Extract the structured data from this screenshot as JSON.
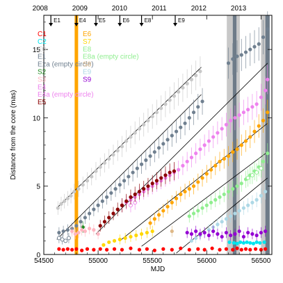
{
  "chart_data": {
    "type": "scatter",
    "xlabel": "MJD",
    "ylabel": "Distance from the core (mas)",
    "xlim": [
      54500,
      56600
    ],
    "ylim": [
      0,
      17.5
    ],
    "x_ticks": [
      54500,
      55000,
      55500,
      56000,
      56500
    ],
    "y_ticks": [
      0,
      5,
      10,
      15
    ],
    "top_axis": {
      "labels": [
        {
          "text": "2008",
          "mjd": 54466
        },
        {
          "text": "2009",
          "mjd": 54832
        },
        {
          "text": "2010",
          "mjd": 55197
        },
        {
          "text": "2011",
          "mjd": 55562
        },
        {
          "text": "2012",
          "mjd": 55927
        },
        {
          "text": "2013",
          "mjd": 56293
        }
      ]
    },
    "events": [
      {
        "label": "E1",
        "mjd": 54565
      },
      {
        "label": "E4",
        "mjd": 54800
      },
      {
        "label": "E5",
        "mjd": 54980
      },
      {
        "label": "E6",
        "mjd": 55200
      },
      {
        "label": "E8",
        "mjd": 55400
      },
      {
        "label": "E9",
        "mjd": 55710
      }
    ],
    "shaded_bands": [
      {
        "mjd_start": 56185,
        "mjd_end": 56240,
        "color": "#c8c8c8"
      },
      {
        "mjd_start": 56240,
        "mjd_end": 56275,
        "color": "#6e7b88"
      },
      {
        "mjd_start": 56275,
        "mjd_end": 56305,
        "color": "#c8c8c8"
      },
      {
        "mjd_start": 56500,
        "mjd_end": 56540,
        "color": "#c8c8c8"
      },
      {
        "mjd_start": 56540,
        "mjd_end": 56580,
        "color": "#6e7b88"
      }
    ],
    "vertical_line": {
      "mjd": 54800,
      "color": "#ffa500"
    },
    "legend_col1": [
      {
        "label": "C1",
        "color": "#ff0000"
      },
      {
        "label": "C2",
        "color": "#00e5ee"
      },
      {
        "label": "E0",
        "color": "#c8c8c8"
      },
      {
        "label": "E1",
        "color": "#708090"
      },
      {
        "label": "E1a (empty circle)",
        "color": "#708090"
      },
      {
        "label": "S2",
        "color": "#228b22"
      },
      {
        "label": "S3",
        "color": "#ffb6c1"
      },
      {
        "label": "E4",
        "color": "#ee82ee"
      },
      {
        "label": "E4a (empty circle)",
        "color": "#ee82ee"
      },
      {
        "label": "E5",
        "color": "#8b0000"
      }
    ],
    "legend_col2": [
      {
        "label": "E6",
        "color": "#ffa500"
      },
      {
        "label": "S7",
        "color": "#ffd700"
      },
      {
        "label": "E8",
        "color": "#90ee90"
      },
      {
        "label": "E8a (empty circle)",
        "color": "#90ee90"
      },
      {
        "label": "S8",
        "color": "#deb887"
      },
      {
        "label": "E9",
        "color": "#add8e6"
      },
      {
        "label": "S9",
        "color": "#9400d3"
      }
    ],
    "fit_lines": [
      {
        "x": [
          54620,
          55950
        ],
        "y": [
          3.4,
          13.7
        ]
      },
      {
        "x": [
          54620,
          55950
        ],
        "y": [
          1.1,
          11.7
        ]
      },
      {
        "x": [
          54980,
          56560
        ],
        "y": [
          1.5,
          14.0
        ]
      },
      {
        "x": [
          55200,
          56560
        ],
        "y": [
          1.0,
          9.6
        ]
      },
      {
        "x": [
          55400,
          56560
        ],
        "y": [
          0.6,
          7.5
        ]
      },
      {
        "x": [
          55720,
          56560
        ],
        "y": [
          0.1,
          5.6
        ]
      }
    ],
    "series": [
      {
        "name": "C1",
        "color": "#ff0000",
        "marker": "filled",
        "x": [
          54640,
          54680,
          54720,
          54760,
          54800,
          54850,
          54900,
          54960,
          55020,
          55080,
          55150,
          55220,
          55300,
          55380,
          55450,
          55520,
          55600,
          55680,
          55760,
          55840,
          55920,
          55980,
          56050,
          56120,
          56180,
          56240,
          56280,
          56320,
          56360,
          56400,
          56450,
          56500,
          56540
        ],
        "y": [
          0.4,
          0.35,
          0.4,
          0.35,
          0.4,
          0.3,
          0.4,
          0.35,
          0.4,
          0.35,
          0.4,
          0.35,
          0.45,
          0.35,
          0.4,
          0.3,
          0.4,
          0.35,
          0.45,
          0.35,
          0.4,
          0.35,
          0.45,
          0.35,
          0.4,
          0.35,
          0.45,
          0.35,
          0.4,
          0.35,
          0.4,
          0.35,
          0.4
        ]
      },
      {
        "name": "C2",
        "color": "#00e5ee",
        "marker": "filled",
        "x": [
          56210,
          56250,
          56280,
          56310,
          56340,
          56370,
          56400,
          56430,
          56460,
          56490,
          56530
        ],
        "y": [
          0.9,
          0.85,
          0.8,
          0.9,
          0.85,
          0.9,
          0.85,
          0.8,
          0.9,
          0.85,
          0.9
        ]
      },
      {
        "name": "E0",
        "color": "#c8c8c8",
        "marker": "filled",
        "x": [
          54630,
          54660,
          54690,
          54720,
          54750,
          54780,
          54820,
          54860,
          54900,
          54940,
          54980,
          55020,
          55060,
          55100,
          55140,
          55180,
          55220,
          55260,
          55300,
          55340,
          55380,
          55420,
          55460,
          55500,
          55540,
          55580,
          55620,
          55660,
          55700,
          55740,
          55780,
          55820,
          55860,
          55900,
          55940
        ],
        "y": [
          3.4,
          3.7,
          3.9,
          4.1,
          4.3,
          4.6,
          4.8,
          5.1,
          5.4,
          5.7,
          6.1,
          6.4,
          6.7,
          7.0,
          7.3,
          7.6,
          7.9,
          8.3,
          8.6,
          8.9,
          9.2,
          9.5,
          9.8,
          10.1,
          10.4,
          10.7,
          11.0,
          11.3,
          11.6,
          11.9,
          12.2,
          12.5,
          12.8,
          13.1,
          13.4
        ]
      },
      {
        "name": "E1",
        "color": "#708090",
        "marker": "filled",
        "x": [
          54640,
          54680,
          54720,
          54760,
          54800,
          54840,
          54880,
          54920,
          54960,
          55000,
          55040,
          55080,
          55120,
          55160,
          55200,
          55240,
          55280,
          55320,
          55360,
          55400,
          55440,
          55480,
          55520,
          55560,
          55600,
          55640,
          55680,
          55720,
          55760,
          55800,
          55840,
          55880,
          55920,
          55960,
          56200,
          56240,
          56280,
          56320,
          56360,
          56400,
          56440,
          56480,
          56520,
          56560
        ],
        "y": [
          1.6,
          1.7,
          1.8,
          1.9,
          2.1,
          2.4,
          2.7,
          3.0,
          3.3,
          3.6,
          3.9,
          4.2,
          4.5,
          4.8,
          5.1,
          5.4,
          5.7,
          6.0,
          6.3,
          6.6,
          6.9,
          7.2,
          7.5,
          7.8,
          8.1,
          8.4,
          8.7,
          9.0,
          9.3,
          9.6,
          10.0,
          10.4,
          10.8,
          11.2,
          14.0,
          14.3,
          14.5,
          14.6,
          14.8,
          15.0,
          15.2,
          15.4,
          15.9,
          16.5
        ]
      },
      {
        "name": "E1a (empty circle)",
        "color": "#708090",
        "marker": "empty",
        "x": [
          54640,
          54670,
          54700,
          54730
        ],
        "y": [
          1.2,
          1.1,
          1.0,
          1.2
        ]
      },
      {
        "name": "S2",
        "color": "#228b22",
        "marker": "filled",
        "x": [
          54860
        ],
        "y": [
          2.0
        ]
      },
      {
        "name": "S3",
        "color": "#ffb6c1",
        "marker": "filled",
        "x": [
          54760,
          54790,
          54820,
          54850,
          54880,
          54920,
          54960,
          55000
        ],
        "y": [
          1.7,
          1.5,
          1.6,
          1.8,
          1.7,
          1.9,
          1.8,
          1.5
        ]
      },
      {
        "name": "E4",
        "color": "#ee82ee",
        "marker": "filled",
        "x": [
          55220,
          55260,
          55300,
          55340,
          55380,
          55420,
          55460,
          55500,
          55540,
          55580,
          55620,
          55660,
          55700,
          55740,
          55780,
          55820,
          55860,
          55900,
          55940,
          55980,
          56020,
          56060,
          56100,
          56140,
          56180,
          56220,
          56260,
          56300,
          56340,
          56380,
          56420,
          56460,
          56500,
          56540,
          56560
        ],
        "y": [
          3.6,
          3.8,
          4.0,
          4.2,
          4.4,
          4.6,
          4.8,
          5.0,
          5.2,
          5.4,
          5.6,
          5.8,
          6.0,
          6.2,
          6.5,
          6.8,
          7.1,
          7.4,
          7.7,
          8.0,
          8.3,
          8.6,
          8.9,
          9.2,
          9.5,
          9.8,
          10.0,
          10.2,
          10.4,
          10.6,
          10.8,
          11.0,
          11.5,
          12.0,
          12.8
        ]
      },
      {
        "name": "E4a (empty circle)",
        "color": "#ee82ee",
        "marker": "empty",
        "x": [
          55300,
          55340
        ],
        "y": [
          3.6,
          3.8
        ]
      },
      {
        "name": "E5",
        "color": "#8b0000",
        "marker": "filled",
        "x": [
          55020,
          55060,
          55100,
          55140,
          55180,
          55220,
          55260,
          55300,
          55340,
          55380,
          55420,
          55460,
          55500,
          55540,
          55580,
          55620,
          55660,
          55700
        ],
        "y": [
          2.1,
          2.4,
          2.7,
          3.0,
          3.3,
          3.6,
          3.9,
          4.2,
          4.4,
          4.6,
          4.8,
          5.0,
          5.2,
          5.4,
          5.6,
          5.8,
          6.0,
          6.1
        ]
      },
      {
        "name": "E6",
        "color": "#ffa500",
        "marker": "filled",
        "x": [
          55480,
          55520,
          55560,
          55600,
          55640,
          55680,
          55720,
          55760,
          55800,
          55840,
          55880,
          55920,
          55960,
          56000,
          56040,
          56080,
          56120,
          56160,
          56200,
          56240,
          56280,
          56320,
          56360,
          56400,
          56440,
          56480,
          56520,
          56560
        ],
        "y": [
          2.3,
          2.6,
          2.9,
          3.2,
          3.5,
          3.8,
          4.1,
          4.4,
          4.6,
          4.8,
          5.0,
          5.3,
          5.6,
          5.9,
          6.2,
          6.5,
          6.8,
          7.0,
          7.2,
          7.5,
          7.7,
          8.0,
          8.3,
          8.6,
          9.0,
          9.4,
          9.8,
          10.4
        ]
      },
      {
        "name": "S7",
        "color": "#ffd700",
        "marker": "filled",
        "x": [
          55050,
          55100,
          55150,
          55200,
          55250,
          55300,
          55350,
          55400,
          55450,
          55500
        ],
        "y": [
          0.7,
          0.9,
          1.0,
          1.1,
          1.2,
          1.3,
          1.4,
          1.5,
          1.6,
          1.7
        ]
      },
      {
        "name": "E8",
        "color": "#90ee90",
        "marker": "filled",
        "x": [
          55840,
          55880,
          55920,
          55960,
          56000,
          56040,
          56080,
          56120,
          56160,
          56200,
          56240,
          56280,
          56320,
          56360,
          56400,
          56440,
          56480,
          56520,
          56560
        ],
        "y": [
          2.8,
          3.0,
          3.2,
          3.4,
          3.6,
          3.8,
          4.0,
          4.2,
          4.4,
          4.6,
          4.8,
          5.0,
          5.2,
          5.5,
          5.8,
          6.1,
          6.4,
          6.8,
          7.4
        ]
      },
      {
        "name": "E8a (empty circle)",
        "color": "#90ee90",
        "marker": "empty",
        "x": [
          56380,
          56420,
          56460,
          56500
        ],
        "y": [
          5.6,
          5.8,
          6.0,
          6.3
        ]
      },
      {
        "name": "S8",
        "color": "#deb887",
        "marker": "filled",
        "x": [
          55680
        ],
        "y": [
          1.7
        ]
      },
      {
        "name": "E9",
        "color": "#add8e6",
        "marker": "filled",
        "x": [
          55860,
          55900,
          55940,
          55980,
          56020,
          56060,
          56100,
          56140,
          56180,
          56220,
          56260,
          56300,
          56340,
          56380,
          56420,
          56460,
          56500,
          56540
        ],
        "y": [
          1.0,
          1.2,
          1.4,
          1.6,
          1.8,
          2.0,
          2.2,
          2.4,
          2.6,
          2.8,
          3.0,
          3.2,
          3.4,
          3.6,
          3.8,
          4.0,
          4.3,
          4.6
        ]
      },
      {
        "name": "S9",
        "color": "#9400d3",
        "marker": "filled",
        "x": [
          55820,
          55860,
          55900,
          55940,
          55980,
          56020,
          56060,
          56100,
          56140,
          56180,
          56220,
          56260,
          56300,
          56340,
          56380,
          56420,
          56460,
          56500,
          56540
        ],
        "y": [
          1.6,
          1.5,
          1.7,
          1.5,
          1.6,
          1.4,
          1.7,
          1.5,
          1.3,
          1.6,
          1.4,
          1.5,
          1.7,
          1.3,
          1.6,
          1.5,
          1.4,
          1.6,
          1.7
        ]
      }
    ]
  }
}
